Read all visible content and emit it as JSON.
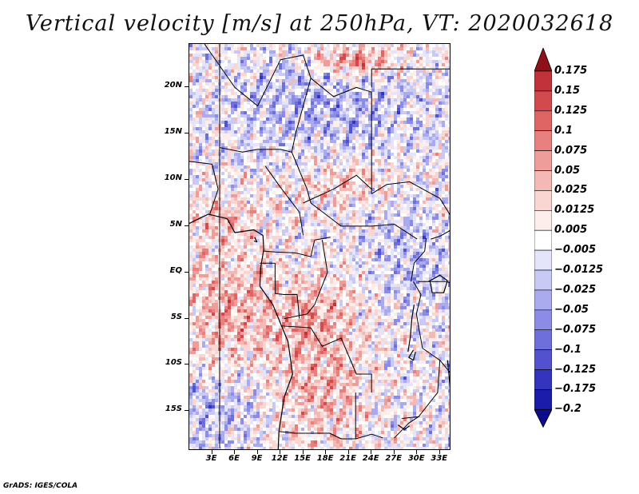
{
  "title": "Vertical velocity [m/s] at 250hPa, VT: 2020032618",
  "footer": "GrADS: IGES/COLA",
  "lat_labels": [
    {
      "text": "20N",
      "lat": 20
    },
    {
      "text": "15N",
      "lat": 15
    },
    {
      "text": "10N",
      "lat": 10
    },
    {
      "text": "5N",
      "lat": 5
    },
    {
      "text": "EQ",
      "lat": 0
    },
    {
      "text": "5S",
      "lat": -5
    },
    {
      "text": "10S",
      "lat": -10
    },
    {
      "text": "15S",
      "lat": -15
    }
  ],
  "lon_labels": [
    {
      "text": "3E",
      "lon": 3
    },
    {
      "text": "6E",
      "lon": 6
    },
    {
      "text": "9E",
      "lon": 9
    },
    {
      "text": "12E",
      "lon": 12
    },
    {
      "text": "15E",
      "lon": 15
    },
    {
      "text": "18E",
      "lon": 18
    },
    {
      "text": "21E",
      "lon": 21
    },
    {
      "text": "24E",
      "lon": 24
    },
    {
      "text": "27E",
      "lon": 27
    },
    {
      "text": "30E",
      "lon": 30
    },
    {
      "text": "33E",
      "lon": 33
    }
  ],
  "map_extent": {
    "lon_min": 0,
    "lon_max": 34.5,
    "lat_min": -19.3,
    "lat_max": 24.7
  },
  "colorbar": {
    "labels": [
      "0.175",
      "0.15",
      "0.125",
      "0.1",
      "0.075",
      "0.05",
      "0.025",
      "0.0125",
      "0.005",
      "−0.005",
      "−0.0125",
      "−0.025",
      "−0.05",
      "−0.075",
      "−0.1",
      "−0.125",
      "−0.175",
      "−0.2"
    ],
    "colors": [
      "#b01a24",
      "#c2323a",
      "#d24a4e",
      "#df6464",
      "#e88080",
      "#ef9d9a",
      "#f5b9b5",
      "#fad6d2",
      "#fdeeec",
      "#ffffff",
      "#e4e4fb",
      "#c9c9f5",
      "#aaaaef",
      "#8c8ce6",
      "#6f6fdb",
      "#5252cf",
      "#3434bf",
      "#1c1cab",
      "#0c0c8c"
    ],
    "top_arrow_color": "#8e1118",
    "bottom_arrow_color": "#0c0c8c"
  },
  "field_regions": [
    {
      "name": "gulf-of-guinea-ascent",
      "lon": 5,
      "lat": -4,
      "rx": 7,
      "ry": 6,
      "sign": 1,
      "strength": 0.8
    },
    {
      "name": "angola-ascent",
      "lon": 17,
      "lat": -12,
      "rx": 6,
      "ry": 7,
      "sign": 1,
      "strength": 0.7
    },
    {
      "name": "congo-ascent",
      "lon": 17,
      "lat": -4,
      "rx": 5,
      "ry": 4,
      "sign": 1,
      "strength": 0.6
    },
    {
      "name": "west-africa-ascent",
      "lon": 4,
      "lat": 6,
      "rx": 5,
      "ry": 3,
      "sign": 1,
      "strength": 0.55
    },
    {
      "name": "central-africa-ascent",
      "lon": 20,
      "lat": 10,
      "rx": 7,
      "ry": 2.5,
      "sign": 1,
      "strength": 0.5
    },
    {
      "name": "sahara-subsidence",
      "lon": 18,
      "lat": 18,
      "rx": 14,
      "ry": 5,
      "sign": -1,
      "strength": 0.6
    },
    {
      "name": "east-africa-subsidence",
      "lon": 29,
      "lat": 2,
      "rx": 5,
      "ry": 6,
      "sign": -1,
      "strength": 0.5
    },
    {
      "name": "south-subsidence",
      "lon": 3,
      "lat": -15,
      "rx": 6,
      "ry": 4,
      "sign": -1,
      "strength": 0.55
    },
    {
      "name": "libya-jet-streak",
      "lon": 22,
      "lat": 23,
      "rx": 5,
      "ry": 1.8,
      "sign": 1,
      "strength": 1.2
    }
  ],
  "country_borders": [
    [
      [
        4,
        -19
      ],
      [
        4,
        24.7
      ]
    ],
    [
      [
        2,
        24.7
      ],
      [
        6,
        20
      ],
      [
        9,
        18
      ],
      [
        12,
        23
      ],
      [
        15,
        23.5
      ],
      [
        16,
        21
      ]
    ],
    [
      [
        16,
        21
      ],
      [
        14,
        15
      ],
      [
        13.5,
        13
      ],
      [
        14.5,
        11
      ],
      [
        15.5,
        9
      ],
      [
        16,
        7.5
      ]
    ],
    [
      [
        4,
        13.5
      ],
      [
        7,
        13
      ],
      [
        9,
        13.3
      ],
      [
        12,
        13.3
      ],
      [
        13.5,
        13
      ]
    ],
    [
      [
        0,
        12
      ],
      [
        3,
        11.7
      ],
      [
        3.8,
        9
      ],
      [
        2.7,
        6.3
      ]
    ],
    [
      [
        10,
        11.5
      ],
      [
        12,
        9.2
      ],
      [
        14.5,
        6.5
      ],
      [
        15,
        4
      ]
    ],
    [
      [
        16,
        21
      ],
      [
        19,
        19
      ],
      [
        22,
        20
      ],
      [
        24,
        19.5
      ],
      [
        24,
        8.5
      ]
    ],
    [
      [
        24,
        20
      ],
      [
        24,
        22
      ],
      [
        34.5,
        22
      ]
    ],
    [
      [
        15,
        7.5
      ],
      [
        19,
        9
      ],
      [
        22,
        10.5
      ],
      [
        24,
        9
      ]
    ],
    [
      [
        16,
        7.5
      ],
      [
        20,
        5
      ],
      [
        24,
        5
      ],
      [
        27,
        5.2
      ],
      [
        30,
        3.6
      ]
    ],
    [
      [
        24,
        8.5
      ],
      [
        26,
        9.5
      ],
      [
        29,
        9.8
      ],
      [
        33,
        8
      ],
      [
        34.5,
        6
      ]
    ],
    [
      [
        9.8,
        2.3
      ],
      [
        11.3,
        2.2
      ],
      [
        14,
        2.1
      ],
      [
        16,
        1.7
      ],
      [
        16.5,
        3.5
      ],
      [
        18.6,
        3.8
      ]
    ],
    [
      [
        9.3,
        1
      ],
      [
        11.3,
        1
      ],
      [
        11.3,
        -2.3
      ],
      [
        12.5,
        -2.4
      ],
      [
        14.2,
        -2.4
      ],
      [
        14.5,
        -5
      ]
    ],
    [
      [
        17.5,
        3.5
      ],
      [
        18.2,
        0
      ],
      [
        16.5,
        -3.5
      ],
      [
        15.5,
        -4.5
      ],
      [
        12.5,
        -5
      ]
    ],
    [
      [
        12.2,
        -5.8
      ],
      [
        16,
        -6
      ],
      [
        17.5,
        -8
      ],
      [
        20,
        -7.1
      ],
      [
        22,
        -11
      ],
      [
        24,
        -11
      ],
      [
        24,
        -13
      ]
    ],
    [
      [
        21.9,
        -13
      ],
      [
        21.9,
        -18
      ],
      [
        24,
        -17.5
      ],
      [
        25.5,
        -17.9
      ]
    ],
    [
      [
        11.8,
        -17.2
      ],
      [
        14,
        -17.4
      ],
      [
        18.5,
        -17.4
      ],
      [
        20,
        -18
      ],
      [
        21.9,
        -18
      ]
    ],
    [
      [
        29.5,
        -1
      ],
      [
        30.5,
        -2.4
      ],
      [
        29.9,
        -4.5
      ],
      [
        30.7,
        -8.2
      ]
    ],
    [
      [
        30.7,
        -8.2
      ],
      [
        33,
        -9.5
      ],
      [
        32.7,
        -13
      ],
      [
        30.2,
        -15.6
      ],
      [
        28.9,
        -16.3
      ],
      [
        27,
        -17.9
      ]
    ],
    [
      [
        30.2,
        -1
      ],
      [
        33.9,
        -1
      ],
      [
        34.5,
        -1.2
      ]
    ],
    [
      [
        31.8,
        3.6
      ],
      [
        33,
        3.9
      ],
      [
        34.5,
        4.6
      ]
    ],
    [
      [
        29.2,
        -1
      ],
      [
        29.6,
        1
      ],
      [
        31,
        2.3
      ],
      [
        31.2,
        3.7
      ]
    ],
    [
      [
        33,
        -9.5
      ],
      [
        34.5,
        -11
      ]
    ],
    [
      [
        28,
        -15.8
      ],
      [
        30.3,
        -15.6
      ]
    ]
  ],
  "coastlines": [
    [
      [
        0,
        5.3
      ],
      [
        2.5,
        6.3
      ],
      [
        5,
        5.8
      ],
      [
        6,
        4.3
      ],
      [
        8.5,
        4.6
      ],
      [
        9.7,
        4
      ],
      [
        9.8,
        2.5
      ],
      [
        9.4,
        0.5
      ],
      [
        9.3,
        -1.5
      ],
      [
        11,
        -3.5
      ],
      [
        12,
        -5.5
      ],
      [
        13,
        -7.5
      ],
      [
        13.6,
        -11
      ],
      [
        12.5,
        -13.5
      ],
      [
        11.8,
        -17.2
      ],
      [
        11.7,
        -19.3
      ]
    ],
    [
      [
        28.8,
        -8.6
      ],
      [
        29.1,
        -7
      ],
      [
        29.3,
        -5
      ],
      [
        29.6,
        -3.5
      ]
    ],
    [
      [
        31.5,
        -1
      ],
      [
        33,
        -0.3
      ],
      [
        34,
        -0.9
      ],
      [
        33.5,
        -2.2
      ],
      [
        32,
        -2.2
      ],
      [
        31.7,
        -1
      ]
    ],
    [
      [
        34,
        -9.5
      ],
      [
        34.3,
        -12
      ],
      [
        34.5,
        -14
      ]
    ],
    [
      [
        29.5,
        -8.4
      ],
      [
        28.9,
        -9.2
      ],
      [
        29.5,
        -9.5
      ],
      [
        29.8,
        -8.6
      ]
    ],
    [
      [
        27.5,
        -16.5
      ],
      [
        28.3,
        -17
      ],
      [
        29,
        -16.6
      ]
    ],
    [
      [
        8.6,
        3.8
      ],
      [
        8.9,
        3.3
      ],
      [
        8.5,
        3.4
      ]
    ]
  ]
}
